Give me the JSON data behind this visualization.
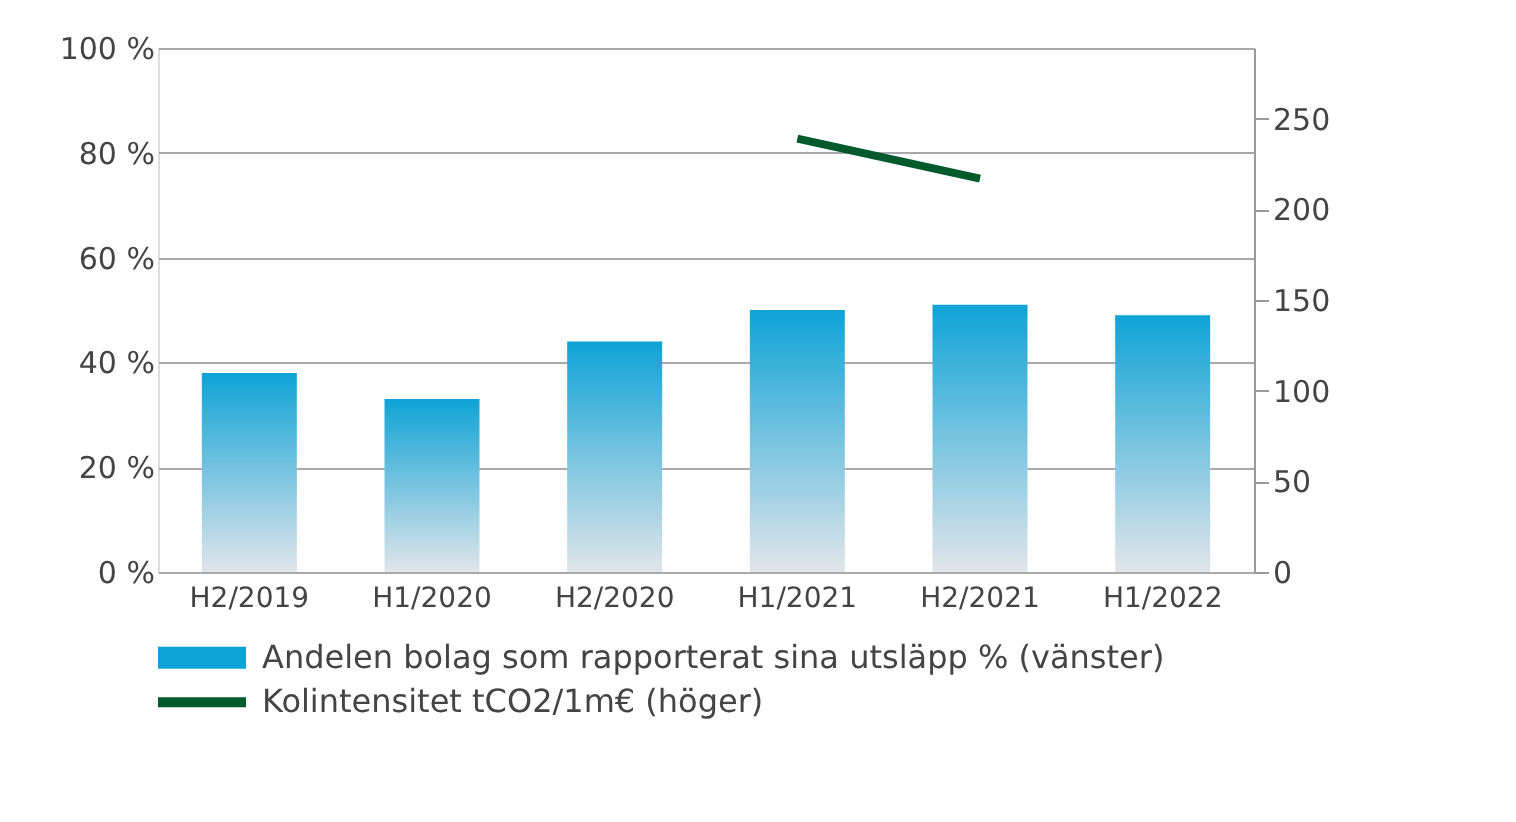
{
  "chart_data": {
    "type": "bar",
    "categories": [
      "H2/2019",
      "H1/2020",
      "H2/2020",
      "H1/2021",
      "H2/2021",
      "H1/2022"
    ],
    "series": [
      {
        "name": "Andelen bolag som rapporterat sina utsläpp % (vänster)",
        "color": "#0ea3d6",
        "values": [
          38,
          33,
          44,
          50,
          51,
          49
        ]
      },
      {
        "name": "Kolintensitet tCO2/1m€ (höger)",
        "type": "line",
        "axis": "y2",
        "color": "#005a2b",
        "values": [
          null,
          null,
          null,
          239,
          217,
          null
        ]
      }
    ],
    "ylim": [
      0,
      100
    ],
    "yticks": [
      {
        "value": 0,
        "label": "0 %"
      },
      {
        "value": 20,
        "label": "20 %"
      },
      {
        "value": 40,
        "label": "40 %"
      },
      {
        "value": 60,
        "label": "60 %"
      },
      {
        "value": 80,
        "label": "80 %"
      },
      {
        "value": 100,
        "label": "100 %"
      }
    ],
    "y2lim": [
      0,
      289
    ],
    "y2ticks": [
      0,
      50,
      100,
      150,
      200,
      250
    ],
    "grid": "y",
    "legend": "bottom"
  }
}
